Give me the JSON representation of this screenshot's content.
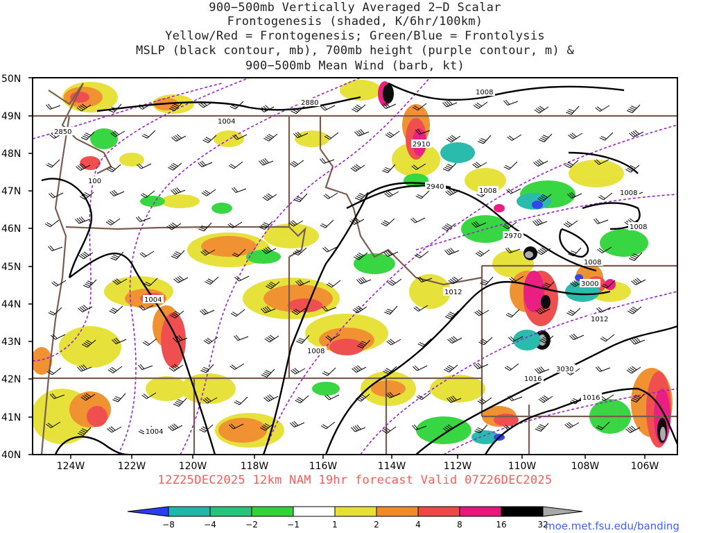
{
  "title": {
    "line1": "900−500mb Vertically Averaged 2−D Scalar",
    "line2": "Frontogenesis (shaded, K/6hr/100km)",
    "line3": "Yellow/Red = Frontogenesis;  Green/Blue = Frontolysis",
    "line4": "MSLP (black contour, mb), 700mb height (purple contour, m) &",
    "line5": "900−500mb Mean Wind (barb, kt)"
  },
  "axes": {
    "lat_labels": [
      "50N",
      "49N",
      "48N",
      "47N",
      "46N",
      "45N",
      "44N",
      "43N",
      "42N",
      "41N",
      "40N"
    ],
    "lon_labels": [
      "124W",
      "122W",
      "120W",
      "118W",
      "116W",
      "114W",
      "112W",
      "110W",
      "108W",
      "106W"
    ]
  },
  "run_info": "12Z25DEC2025 12km NAM 19hr forecast Valid 07Z26DEC2025",
  "colorbar": {
    "labels": [
      "−8",
      "−4",
      "−2",
      "−1",
      "1",
      "2",
      "4",
      "8",
      "16",
      "32"
    ],
    "colors": [
      "#2a3cf0",
      "#1fb8a8",
      "#22c57a",
      "#2fd43a",
      "#ffffff",
      "#e6e032",
      "#f08c28",
      "#f04646",
      "#e8157c",
      "#000000",
      "#a8a8a8"
    ]
  },
  "isobar_labels": [
    "1004",
    "1008",
    "1008",
    "1008",
    "1008",
    "1008",
    "1012",
    "1012",
    "1016",
    "1016",
    "1004",
    "1004",
    "1008",
    "100"
  ],
  "height_labels": [
    "2850",
    "2880",
    "2910",
    "2940",
    "2970",
    "3000",
    "3030"
  ],
  "source_url": "moe.met.fsu.edu/banding",
  "colors": {
    "isobar": "#000000",
    "height": "#9b1fcf",
    "border": "#7a5c4e",
    "run_label": "#ff5a5a",
    "url": "#4060ff"
  }
}
